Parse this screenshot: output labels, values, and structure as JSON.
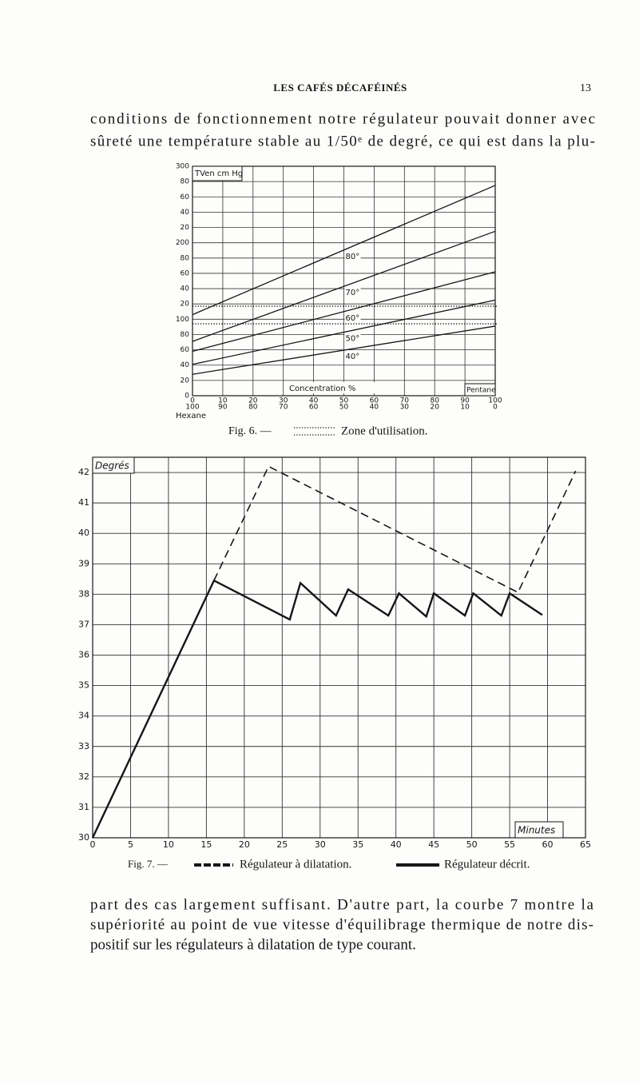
{
  "header": {
    "title": "LES CAFÉS DÉCAFÉINÉS",
    "page": "13"
  },
  "text_top": [
    "conditions de fonctionnement notre régulateur pouvait donner avec",
    "sûreté une température stable au 1/50ᵉ de degré, ce qui est dans la plu-"
  ],
  "chart_data": [
    {
      "type": "line",
      "caption": "Fig. 6. —",
      "ylabel": "TVen cm Hg",
      "xlabel": "Concentration %",
      "xlabel_right": "Pentane",
      "x2label": "Hexane",
      "x": [
        0,
        100
      ],
      "xlim": [
        0,
        100
      ],
      "xticks": [
        0,
        10,
        20,
        30,
        40,
        50,
        60,
        70,
        80,
        90,
        100
      ],
      "x2lim": [
        100,
        0
      ],
      "x2ticks": [
        100,
        90,
        80,
        70,
        60,
        50,
        40,
        30,
        20,
        10,
        0
      ],
      "ylim": [
        0,
        300
      ],
      "yticks": [
        0,
        20,
        40,
        60,
        80,
        100,
        {
          "value": 120,
          "label": "20"
        },
        {
          "value": 140,
          "label": "40"
        },
        {
          "value": 160,
          "label": "60"
        },
        {
          "value": 180,
          "label": "80"
        },
        200,
        {
          "value": 220,
          "label": "20"
        },
        {
          "value": 240,
          "label": "40"
        },
        {
          "value": 260,
          "label": "60"
        },
        {
          "value": 280,
          "label": "80"
        },
        300
      ],
      "grid": true,
      "series": [
        {
          "name": "80°",
          "color": "#161616",
          "values": [
            106,
            275
          ]
        },
        {
          "name": "70°",
          "color": "#161616",
          "values": [
            71,
            215
          ]
        },
        {
          "name": "60°",
          "color": "#161616",
          "values": [
            58,
            162
          ]
        },
        {
          "name": "50°",
          "color": "#161616",
          "values": [
            41,
            125
          ]
        },
        {
          "name": "40°",
          "color": "#161616",
          "values": [
            28,
            91
          ]
        }
      ],
      "zone": {
        "name": "Zone d'utilisation.",
        "values": [
          94,
          117
        ]
      }
    },
    {
      "type": "line",
      "caption": "Fig. 7. —",
      "ylabel": "Degrés",
      "xlabel": "Minutes",
      "xlim": [
        0,
        65
      ],
      "xticks": [
        0,
        5,
        10,
        15,
        20,
        25,
        30,
        35,
        40,
        45,
        50,
        55,
        60,
        65
      ],
      "ylim": [
        30,
        42.5
      ],
      "yticks": [
        30,
        31,
        32,
        33,
        34,
        35,
        36,
        37,
        38,
        39,
        40,
        41,
        42
      ],
      "grid": true,
      "series": [
        {
          "name": "Régulateur à dilatation.",
          "color": "#161616",
          "dash": true,
          "x": [
            16,
            23.2,
            56.1,
            63.7
          ],
          "values": [
            38.45,
            42.2,
            38.06,
            42.05
          ]
        },
        {
          "name": "Régulateur décrit.",
          "color": "#161616",
          "dash": false,
          "x": [
            0,
            16,
            26,
            27.4,
            32.1,
            33.7,
            39,
            40.4,
            44,
            45,
            49.1,
            50.2,
            53.9,
            55,
            59.3
          ],
          "values": [
            30,
            38.45,
            37.17,
            38.37,
            37.3,
            38.16,
            37.3,
            38.03,
            37.27,
            38.03,
            37.3,
            38.03,
            37.3,
            38.03,
            37.32
          ]
        }
      ]
    }
  ],
  "text_bottom": [
    "part des cas largement suffisant. D'autre part, la courbe 7 montre la",
    "supériorité au point de vue vitesse d'équilibrage thermique de notre dis-",
    "positif sur les régulateurs à dilatation de type courant."
  ]
}
